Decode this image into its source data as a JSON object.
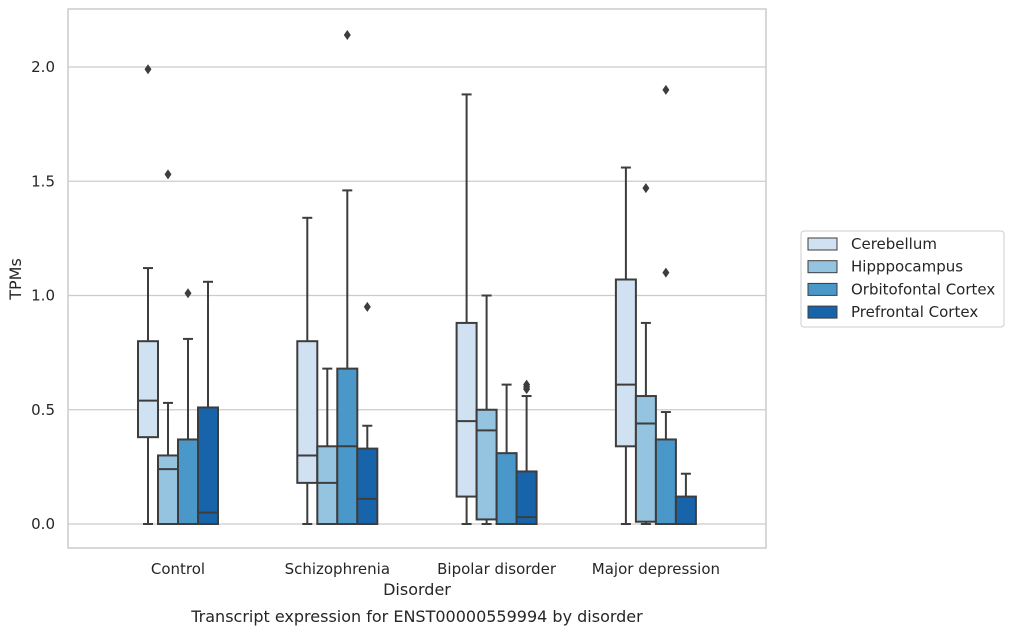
{
  "chart_data": {
    "type": "box",
    "caption": "Transcript expression for ENST00000559994 by disorder",
    "xlabel": "Disorder",
    "ylabel": "TPMs",
    "ylim": [
      -0.1,
      2.26
    ],
    "yticks": [
      "0.0",
      "0.5",
      "1.0",
      "1.5",
      "2.0"
    ],
    "ytick_values": [
      0.0,
      0.5,
      1.0,
      1.5,
      2.0
    ],
    "grid": "horizontal",
    "legend_position": "right",
    "categories": [
      "Control",
      "Schizophrenia",
      "Bipolar disorder",
      "Major depression"
    ],
    "series": [
      {
        "name": "Cerebellum",
        "color": "#d0e1f2",
        "boxes": [
          {
            "whisker_low": 0.0,
            "q1": 0.38,
            "median": 0.54,
            "q3": 0.8,
            "whisker_high": 1.12,
            "outliers": [
              1.99
            ]
          },
          {
            "whisker_low": 0.0,
            "q1": 0.18,
            "median": 0.3,
            "q3": 0.8,
            "whisker_high": 1.34,
            "outliers": []
          },
          {
            "whisker_low": 0.0,
            "q1": 0.12,
            "median": 0.45,
            "q3": 0.88,
            "whisker_high": 1.88,
            "outliers": []
          },
          {
            "whisker_low": 0.0,
            "q1": 0.34,
            "median": 0.61,
            "q3": 1.07,
            "whisker_high": 1.56,
            "outliers": []
          }
        ]
      },
      {
        "name": "Hipppocampus",
        "color": "#94c4df",
        "boxes": [
          {
            "whisker_low": 0.0,
            "q1": 0.0,
            "median": 0.24,
            "q3": 0.3,
            "whisker_high": 0.53,
            "outliers": [
              1.53
            ]
          },
          {
            "whisker_low": 0.0,
            "q1": 0.0,
            "median": 0.18,
            "q3": 0.34,
            "whisker_high": 0.68,
            "outliers": []
          },
          {
            "whisker_low": 0.0,
            "q1": 0.02,
            "median": 0.41,
            "q3": 0.5,
            "whisker_high": 1.0,
            "outliers": []
          },
          {
            "whisker_low": 0.0,
            "q1": 0.01,
            "median": 0.44,
            "q3": 0.56,
            "whisker_high": 0.88,
            "outliers": [
              1.47
            ]
          }
        ]
      },
      {
        "name": "Orbitofontal Cortex",
        "color": "#4a98c9",
        "boxes": [
          {
            "whisker_low": 0.0,
            "q1": 0.0,
            "median": 0.0,
            "q3": 0.37,
            "whisker_high": 0.81,
            "outliers": [
              1.01
            ]
          },
          {
            "whisker_low": 0.0,
            "q1": 0.0,
            "median": 0.34,
            "q3": 0.68,
            "whisker_high": 1.46,
            "outliers": [
              2.14
            ]
          },
          {
            "whisker_low": 0.0,
            "q1": 0.0,
            "median": 0.0,
            "q3": 0.31,
            "whisker_high": 0.61,
            "outliers": []
          },
          {
            "whisker_low": 0.0,
            "q1": 0.0,
            "median": 0.0,
            "q3": 0.37,
            "whisker_high": 0.49,
            "outliers": [
              1.1,
              1.9
            ]
          }
        ]
      },
      {
        "name": "Prefrontal Cortex",
        "color": "#1764ab",
        "boxes": [
          {
            "whisker_low": 0.0,
            "q1": 0.0,
            "median": 0.05,
            "q3": 0.51,
            "whisker_high": 1.06,
            "outliers": []
          },
          {
            "whisker_low": 0.0,
            "q1": 0.0,
            "median": 0.11,
            "q3": 0.33,
            "whisker_high": 0.43,
            "outliers": [
              0.95
            ]
          },
          {
            "whisker_low": 0.0,
            "q1": 0.0,
            "median": 0.03,
            "q3": 0.23,
            "whisker_high": 0.56,
            "outliers": [
              0.59,
              0.6,
              0.61
            ]
          },
          {
            "whisker_low": 0.0,
            "q1": 0.0,
            "median": 0.0,
            "q3": 0.12,
            "whisker_high": 0.22,
            "outliers": []
          }
        ]
      }
    ]
  }
}
